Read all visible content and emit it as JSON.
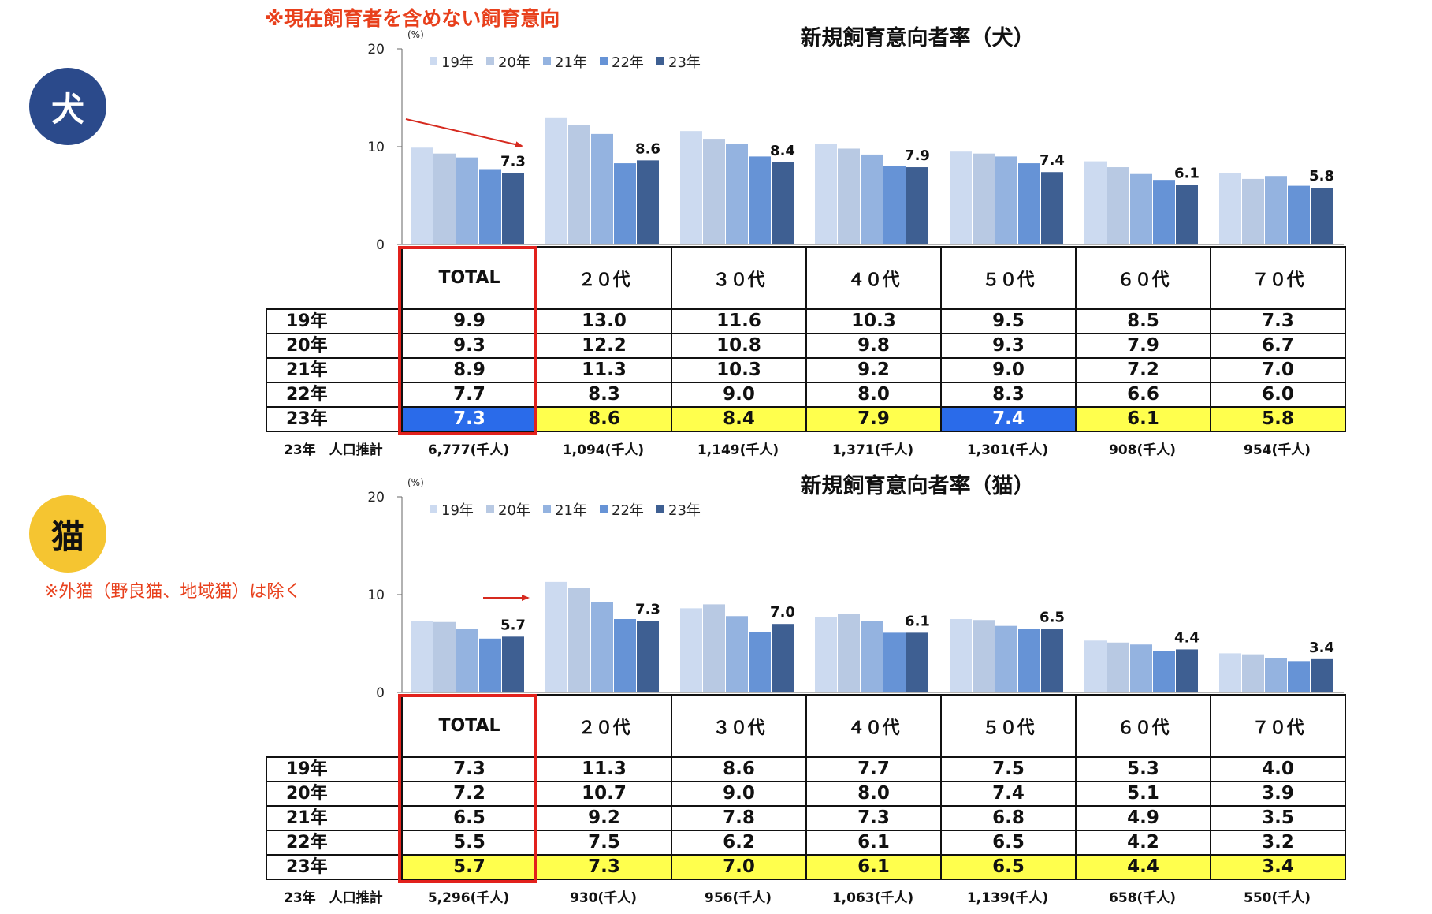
{
  "notes": {
    "top": "※現在飼育者を含めない飼育意向",
    "cat": "※外猫（野良猫、地域猫）は除く"
  },
  "badges": {
    "dog": "犬",
    "cat": "猫"
  },
  "colors": {
    "series": [
      "#ccdaf0",
      "#b8c9e3",
      "#94b3e0",
      "#6693d6",
      "#3e5f92"
    ],
    "highlight_yellow": "#ffff4d",
    "highlight_blue": "#2a6bea",
    "frame_red": "#e2211c",
    "arrow_red": "#d62a1f"
  },
  "chart_data": [
    {
      "type": "bar",
      "title": "新規飼育意向者率（犬）",
      "unit": "(%)",
      "ylim": [
        0,
        20
      ],
      "yticks": [
        "0",
        "10",
        "20"
      ],
      "legend_position": "top-left",
      "categories": [
        "TOTAL",
        "２０代",
        "３０代",
        "４０代",
        "５０代",
        "６０代",
        "７０代"
      ],
      "series": [
        {
          "name": "19年",
          "values": [
            9.9,
            13.0,
            11.6,
            10.3,
            9.5,
            8.5,
            7.3
          ]
        },
        {
          "name": "20年",
          "values": [
            9.3,
            12.2,
            10.8,
            9.8,
            9.3,
            7.9,
            6.7
          ]
        },
        {
          "name": "21年",
          "values": [
            8.9,
            11.3,
            10.3,
            9.2,
            9.0,
            7.2,
            7.0
          ]
        },
        {
          "name": "22年",
          "values": [
            7.7,
            8.3,
            9.0,
            8.0,
            8.3,
            6.6,
            6.0
          ]
        },
        {
          "name": "23年",
          "values": [
            7.3,
            8.6,
            8.4,
            7.9,
            7.4,
            6.1,
            5.8
          ]
        }
      ],
      "data_labels": [
        "7.3",
        "8.6",
        "8.4",
        "7.9",
        "7.4",
        "6.1",
        "5.8"
      ],
      "highlight_23": [
        "blue",
        "yellow",
        "yellow",
        "yellow",
        "blue",
        "yellow",
        "yellow"
      ],
      "population_label": "23年　人口推計",
      "population": [
        "6,777(千人)",
        "1,094(千人)",
        "1,149(千人)",
        "1,371(千人)",
        "1,301(千人)",
        "908(千人)",
        "954(千人)"
      ]
    },
    {
      "type": "bar",
      "title": "新規飼育意向者率（猫）",
      "unit": "(%)",
      "ylim": [
        0,
        20
      ],
      "yticks": [
        "0",
        "10",
        "20"
      ],
      "legend_position": "top-left",
      "categories": [
        "TOTAL",
        "２０代",
        "３０代",
        "４０代",
        "５０代",
        "６０代",
        "７０代"
      ],
      "series": [
        {
          "name": "19年",
          "values": [
            7.3,
            11.3,
            8.6,
            7.7,
            7.5,
            5.3,
            4.0
          ]
        },
        {
          "name": "20年",
          "values": [
            7.2,
            10.7,
            9.0,
            8.0,
            7.4,
            5.1,
            3.9
          ]
        },
        {
          "name": "21年",
          "values": [
            6.5,
            9.2,
            7.8,
            7.3,
            6.8,
            4.9,
            3.5
          ]
        },
        {
          "name": "22年",
          "values": [
            5.5,
            7.5,
            6.2,
            6.1,
            6.5,
            4.2,
            3.2
          ]
        },
        {
          "name": "23年",
          "values": [
            5.7,
            7.3,
            7.0,
            6.1,
            6.5,
            4.4,
            3.4
          ]
        }
      ],
      "data_labels": [
        "5.7",
        "7.3",
        "7.0",
        "6.1",
        "6.5",
        "4.4",
        "3.4"
      ],
      "highlight_23": [
        "yellow",
        "yellow",
        "yellow",
        "yellow",
        "yellow",
        "yellow",
        "yellow"
      ],
      "population_label": "23年　人口推計",
      "population": [
        "5,296(千人)",
        "930(千人)",
        "956(千人)",
        "1,063(千人)",
        "1,139(千人)",
        "658(千人)",
        "550(千人)"
      ]
    }
  ]
}
